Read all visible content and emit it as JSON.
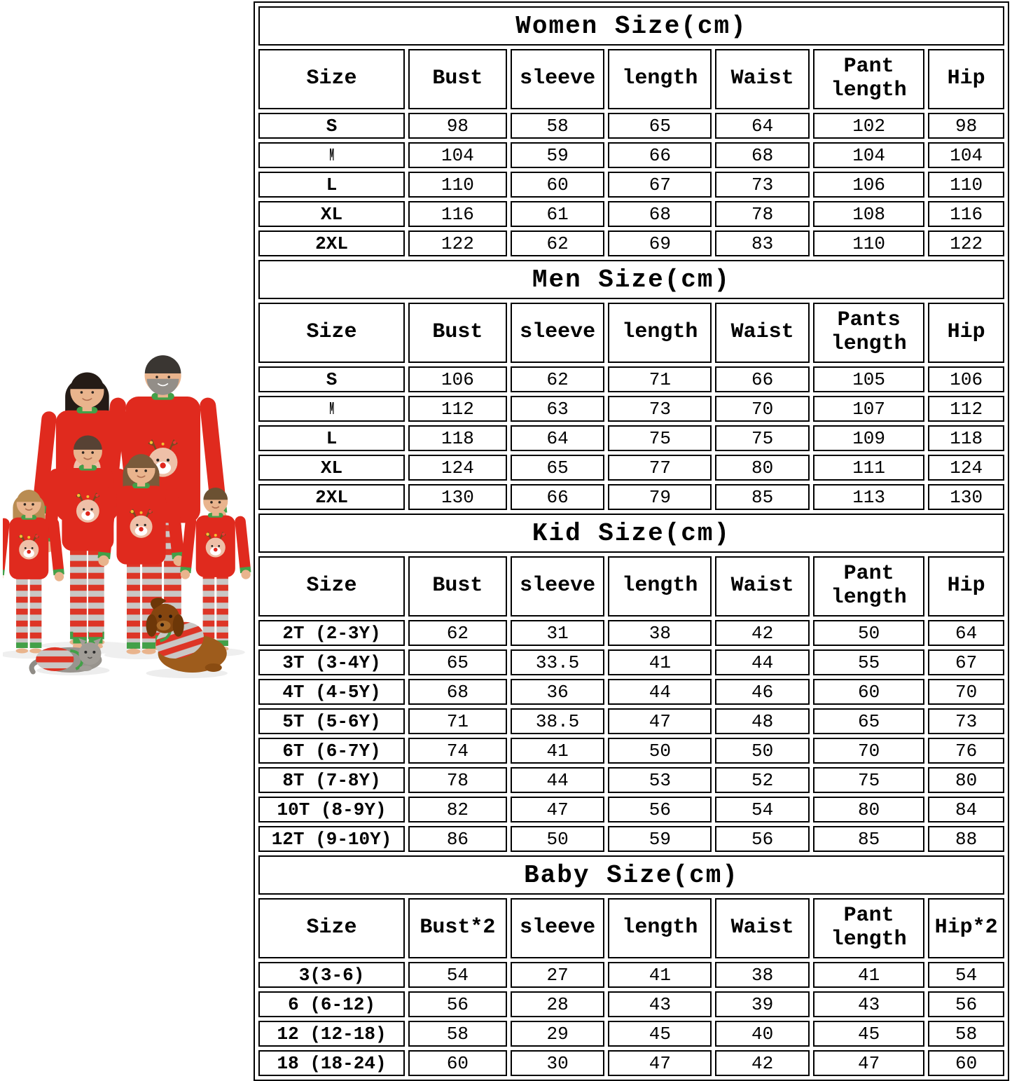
{
  "colors": {
    "table_border": "#000000",
    "pajama_red": "#e02a1e",
    "stripe_gray": "#c9c7c5",
    "trim_green": "#43a048"
  },
  "photo": {
    "figures": [
      "mother",
      "father",
      "son",
      "daughter",
      "toddler-girl",
      "toddler-boy",
      "cat",
      "dog"
    ]
  },
  "size_chart": {
    "sections": [
      {
        "title": "Women Size(cm)",
        "headers": [
          "Size",
          "Bust",
          "sleeve",
          "length",
          "Waist",
          "Pant length",
          "Hip"
        ],
        "rows": [
          [
            "S",
            "98",
            "58",
            "65",
            "64",
            "102",
            "98"
          ],
          [
            "M",
            "104",
            "59",
            "66",
            "68",
            "104",
            "104"
          ],
          [
            "L",
            "110",
            "60",
            "67",
            "73",
            "106",
            "110"
          ],
          [
            "XL",
            "116",
            "61",
            "68",
            "78",
            "108",
            "116"
          ],
          [
            "2XL",
            "122",
            "62",
            "69",
            "83",
            "110",
            "122"
          ]
        ]
      },
      {
        "title": "Men Size(cm)",
        "headers": [
          "Size",
          "Bust",
          "sleeve",
          "length",
          "Waist",
          "Pants length",
          "Hip"
        ],
        "rows": [
          [
            "S",
            "106",
            "62",
            "71",
            "66",
            "105",
            "106"
          ],
          [
            "M",
            "112",
            "63",
            "73",
            "70",
            "107",
            "112"
          ],
          [
            "L",
            "118",
            "64",
            "75",
            "75",
            "109",
            "118"
          ],
          [
            "XL",
            "124",
            "65",
            "77",
            "80",
            "111",
            "124"
          ],
          [
            "2XL",
            "130",
            "66",
            "79",
            "85",
            "113",
            "130"
          ]
        ]
      },
      {
        "title": "Kid Size(cm)",
        "headers": [
          "Size",
          "Bust",
          "sleeve",
          "length",
          "Waist",
          "Pant length",
          "Hip"
        ],
        "rows": [
          [
            "2T (2-3Y)",
            "62",
            "31",
            "38",
            "42",
            "50",
            "64"
          ],
          [
            "3T (3-4Y)",
            "65",
            "33.5",
            "41",
            "44",
            "55",
            "67"
          ],
          [
            "4T (4-5Y)",
            "68",
            "36",
            "44",
            "46",
            "60",
            "70"
          ],
          [
            "5T (5-6Y)",
            "71",
            "38.5",
            "47",
            "48",
            "65",
            "73"
          ],
          [
            "6T (6-7Y)",
            "74",
            "41",
            "50",
            "50",
            "70",
            "76"
          ],
          [
            "8T (7-8Y)",
            "78",
            "44",
            "53",
            "52",
            "75",
            "80"
          ],
          [
            "10T (8-9Y)",
            "82",
            "47",
            "56",
            "54",
            "80",
            "84"
          ],
          [
            "12T (9-10Y)",
            "86",
            "50",
            "59",
            "56",
            "85",
            "88"
          ]
        ]
      },
      {
        "title": "Baby Size(cm)",
        "headers": [
          "Size",
          "Bust*2",
          "sleeve",
          "length",
          "Waist",
          "Pant length",
          "Hip*2"
        ],
        "rows": [
          [
            "3(3-6)",
            "54",
            "27",
            "41",
            "38",
            "41",
            "54"
          ],
          [
            "6 (6-12)",
            "56",
            "28",
            "43",
            "39",
            "43",
            "56"
          ],
          [
            "12 (12-18)",
            "58",
            "29",
            "45",
            "40",
            "45",
            "58"
          ],
          [
            "18 (18-24)",
            "60",
            "30",
            "47",
            "42",
            "47",
            "60"
          ]
        ]
      }
    ]
  }
}
